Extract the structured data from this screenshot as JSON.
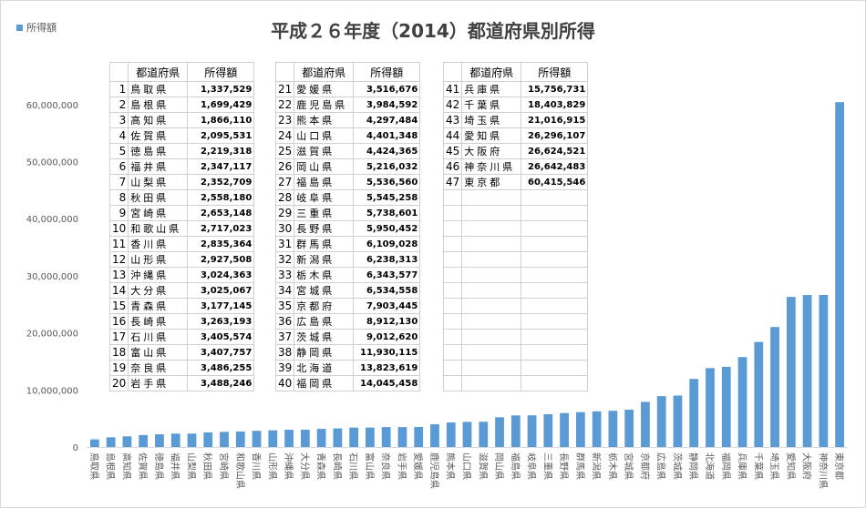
{
  "legend": {
    "label": "所得額",
    "color": "#5b9bd5"
  },
  "chart_data": {
    "type": "bar",
    "title": "平成２６年度（2014）都道府県別所得",
    "xlabel": "",
    "ylabel": "",
    "ylim": [
      0,
      70000000
    ],
    "y_ticks": [
      "0",
      "10,000,000",
      "20,000,000",
      "30,000,000",
      "40,000,000",
      "50,000,000",
      "60,000,000"
    ],
    "y_tick_values": [
      0,
      10000000,
      20000000,
      30000000,
      40000000,
      50000000,
      60000000
    ],
    "grid": false,
    "legend_position": "top-left",
    "categories": [
      "鳥取県",
      "島根県",
      "高知県",
      "佐賀県",
      "徳島県",
      "福井県",
      "山梨県",
      "秋田県",
      "宮崎県",
      "和歌山県",
      "香川県",
      "山形県",
      "沖縄県",
      "大分県",
      "青森県",
      "長崎県",
      "石川県",
      "富山県",
      "奈良県",
      "岩手県",
      "愛媛県",
      "鹿児島県",
      "熊本県",
      "山口県",
      "滋賀県",
      "岡山県",
      "福島県",
      "岐阜県",
      "三重県",
      "長野県",
      "群馬県",
      "新潟県",
      "栃木県",
      "宮城県",
      "京都府",
      "広島県",
      "茨城県",
      "静岡県",
      "北海道",
      "福岡県",
      "兵庫県",
      "千葉県",
      "埼玉県",
      "愛知県",
      "大阪府",
      "神奈川県",
      "東京都"
    ],
    "series": [
      {
        "name": "所得額",
        "values": [
          1337529,
          1699429,
          1866110,
          2095531,
          2219318,
          2347117,
          2352709,
          2558180,
          2653148,
          2717023,
          2835364,
          2927508,
          3024363,
          3025067,
          3177145,
          3263193,
          3405574,
          3407757,
          3486255,
          3488246,
          3516676,
          3984592,
          4297484,
          4401348,
          4424365,
          5216032,
          5536560,
          5545258,
          5738601,
          5950452,
          6109028,
          6238313,
          6343577,
          6534558,
          7903445,
          8912130,
          9012620,
          11930115,
          13823619,
          14045458,
          15756731,
          18403829,
          21016915,
          26296107,
          26624521,
          26642483,
          60415546
        ]
      }
    ]
  },
  "table": {
    "header_pref": "都道府県",
    "header_value": "所得額",
    "columns": [
      [
        {
          "no": "1",
          "pref": "鳥取県",
          "value": "1,337,529"
        },
        {
          "no": "2",
          "pref": "島根県",
          "value": "1,699,429"
        },
        {
          "no": "3",
          "pref": "高知県",
          "value": "1,866,110"
        },
        {
          "no": "4",
          "pref": "佐賀県",
          "value": "2,095,531"
        },
        {
          "no": "5",
          "pref": "徳島県",
          "value": "2,219,318"
        },
        {
          "no": "6",
          "pref": "福井県",
          "value": "2,347,117"
        },
        {
          "no": "7",
          "pref": "山梨県",
          "value": "2,352,709"
        },
        {
          "no": "8",
          "pref": "秋田県",
          "value": "2,558,180"
        },
        {
          "no": "9",
          "pref": "宮崎県",
          "value": "2,653,148"
        },
        {
          "no": "10",
          "pref": "和歌山県",
          "value": "2,717,023"
        },
        {
          "no": "11",
          "pref": "香川県",
          "value": "2,835,364"
        },
        {
          "no": "12",
          "pref": "山形県",
          "value": "2,927,508"
        },
        {
          "no": "13",
          "pref": "沖縄県",
          "value": "3,024,363"
        },
        {
          "no": "14",
          "pref": "大分県",
          "value": "3,025,067"
        },
        {
          "no": "15",
          "pref": "青森県",
          "value": "3,177,145"
        },
        {
          "no": "16",
          "pref": "長崎県",
          "value": "3,263,193"
        },
        {
          "no": "17",
          "pref": "石川県",
          "value": "3,405,574"
        },
        {
          "no": "18",
          "pref": "富山県",
          "value": "3,407,757"
        },
        {
          "no": "19",
          "pref": "奈良県",
          "value": "3,486,255"
        },
        {
          "no": "20",
          "pref": "岩手県",
          "value": "3,488,246"
        }
      ],
      [
        {
          "no": "21",
          "pref": "愛媛県",
          "value": "3,516,676"
        },
        {
          "no": "22",
          "pref": "鹿児島県",
          "value": "3,984,592"
        },
        {
          "no": "23",
          "pref": "熊本県",
          "value": "4,297,484"
        },
        {
          "no": "24",
          "pref": "山口県",
          "value": "4,401,348"
        },
        {
          "no": "25",
          "pref": "滋賀県",
          "value": "4,424,365"
        },
        {
          "no": "26",
          "pref": "岡山県",
          "value": "5,216,032"
        },
        {
          "no": "27",
          "pref": "福島県",
          "value": "5,536,560"
        },
        {
          "no": "28",
          "pref": "岐阜県",
          "value": "5,545,258"
        },
        {
          "no": "29",
          "pref": "三重県",
          "value": "5,738,601"
        },
        {
          "no": "30",
          "pref": "長野県",
          "value": "5,950,452"
        },
        {
          "no": "31",
          "pref": "群馬県",
          "value": "6,109,028"
        },
        {
          "no": "32",
          "pref": "新潟県",
          "value": "6,238,313"
        },
        {
          "no": "33",
          "pref": "栃木県",
          "value": "6,343,577"
        },
        {
          "no": "34",
          "pref": "宮城県",
          "value": "6,534,558"
        },
        {
          "no": "35",
          "pref": "京都府",
          "value": "7,903,445"
        },
        {
          "no": "36",
          "pref": "広島県",
          "value": "8,912,130"
        },
        {
          "no": "37",
          "pref": "茨城県",
          "value": "9,012,620"
        },
        {
          "no": "38",
          "pref": "静岡県",
          "value": "11,930,115"
        },
        {
          "no": "39",
          "pref": "北海道",
          "value": "13,823,619"
        },
        {
          "no": "40",
          "pref": "福岡県",
          "value": "14,045,458"
        }
      ],
      [
        {
          "no": "41",
          "pref": "兵庫県",
          "value": "15,756,731"
        },
        {
          "no": "42",
          "pref": "千葉県",
          "value": "18,403,829"
        },
        {
          "no": "43",
          "pref": "埼玉県",
          "value": "21,016,915"
        },
        {
          "no": "44",
          "pref": "愛知県",
          "value": "26,296,107"
        },
        {
          "no": "45",
          "pref": "大阪府",
          "value": "26,624,521"
        },
        {
          "no": "46",
          "pref": "神奈川県",
          "value": "26,642,483"
        },
        {
          "no": "47",
          "pref": "東京都",
          "value": "60,415,546"
        }
      ]
    ]
  }
}
